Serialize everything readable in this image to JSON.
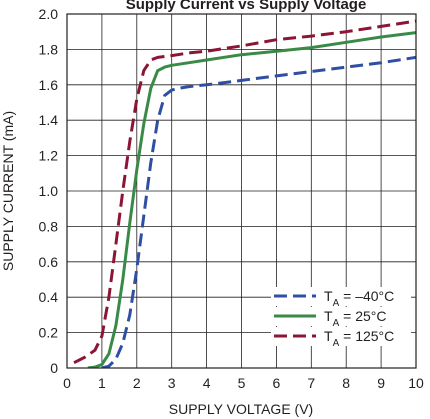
{
  "chart_data": {
    "type": "line",
    "title": "Supply Current vs Supply Voltage",
    "xlabel": "SUPPLY VOLTAGE (V)",
    "ylabel": "SUPPLY CURRENT (mA)",
    "xlim": [
      0,
      10
    ],
    "ylim": [
      0,
      2.0
    ],
    "xticks": [
      "0",
      "1",
      "2",
      "3",
      "4",
      "5",
      "6",
      "7",
      "8",
      "9",
      "10"
    ],
    "yticks": [
      "0",
      "0.2",
      "0.4",
      "0.6",
      "0.8",
      "1.0",
      "1.2",
      "1.4",
      "1.6",
      "1.8",
      "2.0"
    ],
    "grid": true,
    "legend_position": "bottom-right",
    "series": [
      {
        "name": "TA = –40°C",
        "legend_main": "T",
        "legend_sub": "A",
        "legend_rest": " = –40°C",
        "color": "#2e4fa3",
        "dash": "dashed",
        "x": [
          1.0,
          1.2,
          1.4,
          1.6,
          1.8,
          2.0,
          2.2,
          2.4,
          2.6,
          2.8,
          3.0,
          3.2,
          3.5,
          4,
          5,
          6,
          7,
          8,
          9,
          10
        ],
        "y": [
          0.0,
          0.01,
          0.05,
          0.14,
          0.3,
          0.56,
          0.86,
          1.16,
          1.4,
          1.54,
          1.57,
          1.58,
          1.59,
          1.6,
          1.625,
          1.65,
          1.675,
          1.7,
          1.725,
          1.755
        ]
      },
      {
        "name": "TA = 25°C",
        "legend_main": "T",
        "legend_sub": "A",
        "legend_rest": " = 25°C",
        "color": "#3a8a47",
        "dash": "solid",
        "x": [
          0.6,
          0.8,
          1.0,
          1.2,
          1.4,
          1.6,
          1.8,
          2.0,
          2.2,
          2.4,
          2.6,
          2.8,
          3.0,
          3.5,
          4,
          5,
          6,
          7,
          8,
          9,
          10
        ],
        "y": [
          0.0,
          0.005,
          0.02,
          0.08,
          0.24,
          0.5,
          0.82,
          1.12,
          1.38,
          1.58,
          1.68,
          1.7,
          1.71,
          1.725,
          1.74,
          1.77,
          1.79,
          1.81,
          1.84,
          1.87,
          1.895
        ]
      },
      {
        "name": "TA = 125°C",
        "legend_main": "T",
        "legend_sub": "A",
        "legend_rest": " = 125°C",
        "color": "#8b1535",
        "dash": "dashed",
        "x": [
          0.2,
          0.5,
          0.8,
          1.0,
          1.2,
          1.4,
          1.6,
          1.8,
          2.0,
          2.2,
          2.4,
          2.6,
          2.8,
          3.0,
          3.5,
          4,
          5,
          6,
          7,
          8,
          9,
          10
        ],
        "y": [
          0.03,
          0.06,
          0.1,
          0.18,
          0.4,
          0.7,
          1.0,
          1.28,
          1.52,
          1.68,
          1.74,
          1.755,
          1.76,
          1.765,
          1.78,
          1.79,
          1.82,
          1.855,
          1.875,
          1.9,
          1.93,
          1.96
        ]
      }
    ]
  }
}
